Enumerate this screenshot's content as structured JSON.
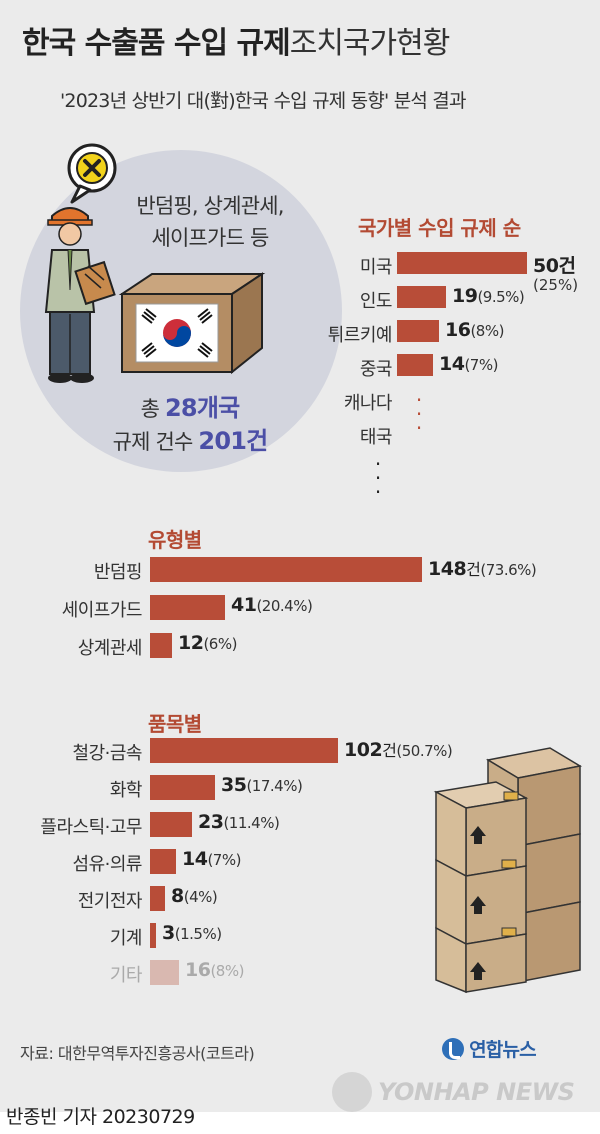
{
  "header": {
    "title_bold": "한국 수출품 수입 규제",
    "title_light": "조치국가현황",
    "subtitle": "'2023년 상반기 대(對)한국 수입 규제 동향' 분석 결과"
  },
  "infobox": {
    "measures_line1": "반덤핑, 상계관세,",
    "measures_line2": "세이프가드 등",
    "total_prefix": "총 ",
    "total_countries": "28개국",
    "count_prefix": "규제 건수 ",
    "count_value": "201건"
  },
  "colors": {
    "bar": "#b84d38",
    "section_title": "#b34a33",
    "highlight": "#4b4fa6"
  },
  "chart_data": [
    {
      "type": "bar",
      "title": "국가별 수입 규제 순",
      "categories": [
        "미국",
        "인도",
        "튀르키예",
        "중국",
        "캐나다",
        "태국"
      ],
      "values": [
        50,
        19,
        16,
        14,
        null,
        null
      ],
      "value_labels": [
        "50건",
        "19",
        "16",
        "14",
        "",
        ""
      ],
      "pct_labels": [
        "(25%)",
        "(9.5%)",
        "(8%)",
        "(7%)",
        "",
        ""
      ]
    },
    {
      "type": "bar",
      "title": "유형별",
      "categories": [
        "반덤핑",
        "세이프가드",
        "상계관세"
      ],
      "values": [
        148,
        41,
        12
      ],
      "value_labels": [
        "148",
        "41",
        "12"
      ],
      "units": [
        "건",
        "",
        ""
      ],
      "pct_labels": [
        "(73.6%)",
        "(20.4%)",
        "(6%)"
      ]
    },
    {
      "type": "bar",
      "title": "품목별",
      "categories": [
        "철강·금속",
        "화학",
        "플라스틱·고무",
        "섬유·의류",
        "전기전자",
        "기계",
        "기타"
      ],
      "values": [
        102,
        35,
        23,
        14,
        8,
        3,
        16
      ],
      "value_labels": [
        "102",
        "35",
        "23",
        "14",
        "8",
        "3",
        "16"
      ],
      "units": [
        "건",
        "",
        "",
        "",
        "",
        "",
        ""
      ],
      "pct_labels": [
        "(50.7%)",
        "(17.4%)",
        "(11.4%)",
        "(7%)",
        "(4%)",
        "(1.5%)",
        "(8%)"
      ]
    }
  ],
  "footer": {
    "source": "자료: 대한무역투자진흥공사(코트라)",
    "brand_ko": "연합뉴스",
    "brand_en": "YONHAP NEWS",
    "byline": "반종빈 기자",
    "date": "20230729"
  }
}
